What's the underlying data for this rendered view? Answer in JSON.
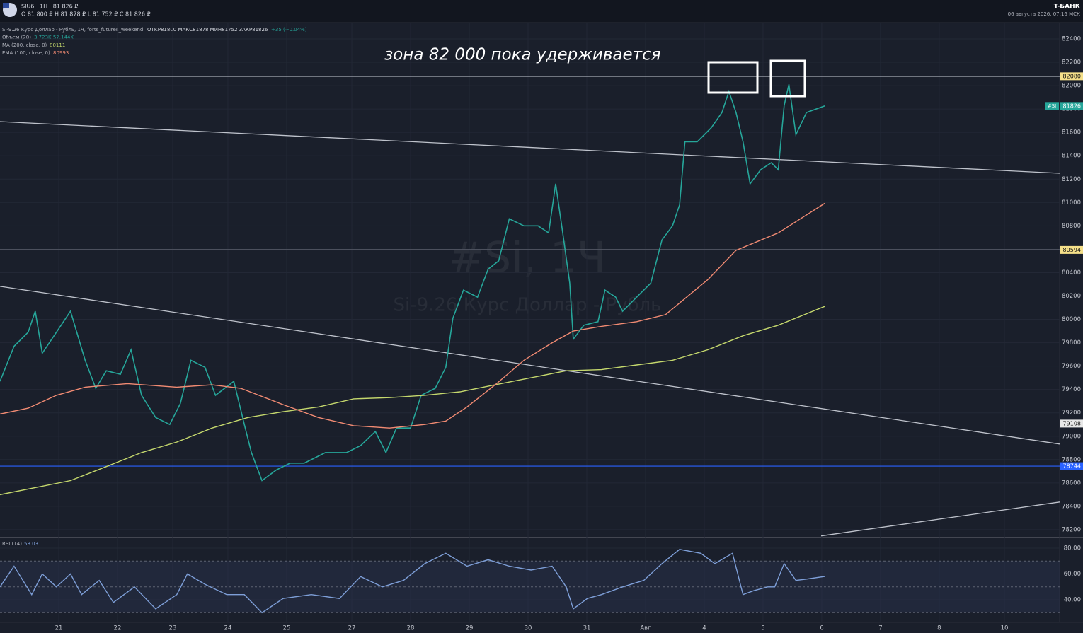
{
  "header": {
    "symbol": "SIU6 · 1H · 81 826 ₽",
    "ohlc": "O 81 800 ₽  H 81 878 ₽  L 81 752 ₽  C 81 826 ₽",
    "brand": "T-БАНК",
    "datetime": "06 августа 2026, 07:16 МСК"
  },
  "legend": {
    "instrument": "Si-9.26 Курс Доллар - Рубль, 1Ч, forts_futures_weekend",
    "ohlc": "ОТКР81800 МАКС81878 МИН81752 ЗАКР81826",
    "change": "+35 (+0.04%)",
    "volume": "Объем (20)",
    "volume_values": "3.723K 57.144K"
  },
  "watermark": {
    "symbol": "#Si, 1Ч",
    "description": "Si-9.26 Курс Доллар - Рубль"
  },
  "annotations": [
    {
      "text": "зона 82 000 пока удерживается"
    }
  ],
  "chart_data": [
    {
      "type": "line",
      "xlim": [
        -1,
        17.04
      ],
      "xticks": [
        {
          "value": 0,
          "label": "21"
        },
        {
          "value": 1,
          "label": "22"
        },
        {
          "value": 1.94,
          "label": "23"
        },
        {
          "value": 2.88,
          "label": "24"
        },
        {
          "value": 3.88,
          "label": "25"
        },
        {
          "value": 4.99,
          "label": "27"
        },
        {
          "value": 5.99,
          "label": "28"
        },
        {
          "value": 6.99,
          "label": "29"
        },
        {
          "value": 7.99,
          "label": "30"
        },
        {
          "value": 8.99,
          "label": "31"
        },
        {
          "value": 9.99,
          "label": "Авг"
        },
        {
          "value": 10.99,
          "label": "4"
        },
        {
          "value": 11.99,
          "label": "5"
        },
        {
          "value": 12.99,
          "label": "6"
        },
        {
          "value": 13.99,
          "label": "7"
        },
        {
          "value": 14.99,
          "label": "8"
        },
        {
          "value": 16.1,
          "label": "10"
        }
      ],
      "ylim": [
        78133,
        82521
      ],
      "yticks": [
        78200,
        78400,
        78600,
        78800,
        79000,
        79200,
        79400,
        79600,
        79800,
        80000,
        80200,
        80400,
        80600,
        80800,
        81000,
        81200,
        81400,
        81600,
        81800,
        82000,
        82200,
        82400
      ],
      "grid": true,
      "series": [
        {
          "name": "#SI",
          "color": "#26a69a",
          "x": [
            -1.0,
            -0.76,
            -0.52,
            -0.4,
            -0.28,
            -0.04,
            0.2,
            0.45,
            0.63,
            0.81,
            1.05,
            1.23,
            1.41,
            1.65,
            1.89,
            2.07,
            2.25,
            2.49,
            2.67,
            2.98,
            3.16,
            3.28,
            3.46,
            3.7,
            3.94,
            4.18,
            4.54,
            4.9,
            5.14,
            5.39,
            5.57,
            5.75,
            5.99,
            6.17,
            6.41,
            6.59,
            6.71,
            6.89,
            7.13,
            7.31,
            7.49,
            7.67,
            7.92,
            8.16,
            8.34,
            8.46,
            8.58,
            8.7,
            8.76,
            8.94,
            9.18,
            9.3,
            9.48,
            9.6,
            9.84,
            10.08,
            10.27,
            10.45,
            10.57,
            10.66,
            10.87,
            11.11,
            11.29,
            11.41,
            11.53,
            11.65,
            11.77,
            11.95,
            12.13,
            12.25,
            12.35,
            12.43,
            12.55,
            12.73,
            13.04
          ],
          "values": [
            79470,
            79770,
            79890,
            80070,
            79710,
            79890,
            80070,
            79650,
            79410,
            79560,
            79530,
            79740,
            79350,
            79160,
            79100,
            79280,
            79650,
            79590,
            79350,
            79470,
            79100,
            78860,
            78620,
            78710,
            78770,
            78770,
            78860,
            78860,
            78920,
            79040,
            78860,
            79070,
            79070,
            79350,
            79410,
            79590,
            80010,
            80250,
            80190,
            80430,
            80500,
            80860,
            80800,
            80800,
            80740,
            81160,
            80740,
            80310,
            79830,
            79950,
            79980,
            80250,
            80190,
            80070,
            80190,
            80310,
            80680,
            80800,
            80980,
            81520,
            81520,
            81640,
            81770,
            81950,
            81770,
            81520,
            81160,
            81280,
            81340,
            81280,
            81830,
            82010,
            81580,
            81770,
            81826
          ]
        },
        {
          "name": "MA (200, close, 0)",
          "color": "#c5d86d",
          "x": [
            -1.0,
            -0.4,
            0.2,
            0.81,
            1.41,
            2.01,
            2.61,
            3.22,
            3.82,
            4.42,
            5.02,
            5.63,
            6.23,
            6.83,
            7.43,
            8.04,
            8.64,
            9.24,
            9.84,
            10.45,
            11.05,
            11.65,
            12.25,
            13.04
          ],
          "values": [
            78500,
            78560,
            78620,
            78740,
            78860,
            78950,
            79070,
            79160,
            79210,
            79250,
            79320,
            79330,
            79350,
            79380,
            79440,
            79500,
            79560,
            79570,
            79610,
            79650,
            79740,
            79860,
            79950,
            80111
          ]
        },
        {
          "name": "EMA (100, close, 0)",
          "color": "#f28b73",
          "x": [
            -1.0,
            -0.52,
            -0.04,
            0.45,
            1.17,
            2.01,
            2.61,
            3.1,
            3.82,
            4.42,
            5.02,
            5.63,
            6.23,
            6.59,
            6.95,
            7.43,
            7.92,
            8.4,
            8.76,
            9.24,
            9.84,
            10.33,
            10.69,
            11.05,
            11.53,
            12.25,
            13.04
          ],
          "values": [
            79190,
            79240,
            79350,
            79420,
            79450,
            79420,
            79440,
            79410,
            79270,
            79160,
            79090,
            79070,
            79100,
            79130,
            79250,
            79440,
            79650,
            79800,
            79900,
            79940,
            79980,
            80040,
            80190,
            80340,
            80590,
            80740,
            80993
          ]
        }
      ],
      "levels": [
        {
          "value": 82080,
          "color": "#c8ccd6",
          "tag_color": "#f5e08a",
          "text_color": "#111111",
          "line": true
        },
        {
          "value": 80594,
          "color": "#c8ccd6",
          "tag_color": "#f5e08a",
          "text_color": "#111111",
          "line": true
        },
        {
          "value": 79108,
          "color": "#c8ccd6",
          "tag_color": "#e8e8e8",
          "text_color": "#111111",
          "line": false
        },
        {
          "value": 78744,
          "color": "#2962ff",
          "tag_color": "#2962ff",
          "text_color": "#ffffff",
          "line": true
        }
      ],
      "trendlines": [
        {
          "x": [
            -1,
            17.04
          ],
          "values": [
            81692,
            81250
          ]
        },
        {
          "x": [
            -1,
            17.04
          ],
          "values": [
            80282,
            78933
          ]
        },
        {
          "x": [
            12.98,
            17.04
          ],
          "values": [
            78147,
            78437
          ]
        }
      ]
    },
    {
      "type": "line",
      "xlim": [
        -1,
        17.04
      ],
      "ylim": [
        22.5,
        87.1
      ],
      "yticks": [
        {
          "value": 40,
          "label": "40.00"
        },
        {
          "value": 60,
          "label": "60.00"
        },
        {
          "value": 80,
          "label": "80.00"
        }
      ],
      "levels": [
        30,
        50,
        70
      ],
      "series": [
        {
          "name": "RSI (14)",
          "color": "#7e9fd8",
          "x": [
            -1.0,
            -0.76,
            -0.46,
            -0.28,
            -0.04,
            0.2,
            0.39,
            0.69,
            0.93,
            1.29,
            1.65,
            2.01,
            2.19,
            2.49,
            2.86,
            3.16,
            3.46,
            3.82,
            4.3,
            4.78,
            5.14,
            5.51,
            5.87,
            6.23,
            6.59,
            6.95,
            7.31,
            7.67,
            8.04,
            8.4,
            8.64,
            8.76,
            9.0,
            9.24,
            9.6,
            9.96,
            10.27,
            10.57,
            10.93,
            11.17,
            11.47,
            11.65,
            11.83,
            12.07,
            12.19,
            12.35,
            12.55,
            12.73,
            13.04
          ],
          "values": [
            50,
            66,
            44,
            60,
            50,
            60,
            44,
            55,
            38,
            50,
            33,
            44,
            60,
            52,
            44,
            44,
            30,
            41,
            44,
            41,
            58,
            50,
            55,
            68,
            76,
            66,
            71,
            66,
            63,
            66,
            50,
            33,
            41,
            44,
            50,
            55,
            68,
            79,
            76,
            68,
            76,
            44,
            47,
            50,
            50,
            68,
            55,
            56,
            58.03
          ]
        }
      ]
    }
  ]
}
